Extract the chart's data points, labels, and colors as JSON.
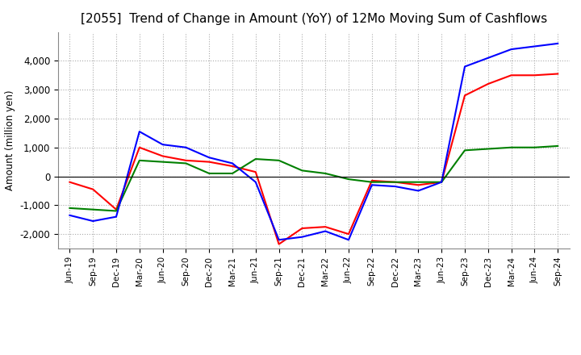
{
  "title": "[2055]  Trend of Change in Amount (YoY) of 12Mo Moving Sum of Cashflows",
  "ylabel": "Amount (million yen)",
  "background_color": "#ffffff",
  "grid_color": "#aaaaaa",
  "x_labels": [
    "Jun-19",
    "Sep-19",
    "Dec-19",
    "Mar-20",
    "Jun-20",
    "Sep-20",
    "Dec-20",
    "Mar-21",
    "Jun-21",
    "Sep-21",
    "Dec-21",
    "Mar-22",
    "Jun-22",
    "Sep-22",
    "Dec-22",
    "Mar-23",
    "Jun-23",
    "Sep-23",
    "Dec-23",
    "Mar-24",
    "Jun-24",
    "Sep-24"
  ],
  "operating": [
    -200,
    -450,
    -1150,
    1000,
    700,
    550,
    500,
    350,
    150,
    -2350,
    -1800,
    -1750,
    -2000,
    -150,
    -200,
    -300,
    -200,
    2800,
    3200,
    3500,
    3500,
    3550
  ],
  "investing": [
    -1100,
    -1150,
    -1200,
    550,
    500,
    450,
    100,
    100,
    600,
    550,
    200,
    100,
    -100,
    -200,
    -200,
    -200,
    -200,
    900,
    950,
    1000,
    1000,
    1050
  ],
  "free": [
    -1350,
    -1550,
    -1400,
    1550,
    1100,
    1000,
    650,
    450,
    -200,
    -2200,
    -2100,
    -1900,
    -2200,
    -300,
    -350,
    -500,
    -200,
    3800,
    4100,
    4400,
    4500,
    4600
  ],
  "op_color": "#ff0000",
  "inv_color": "#008000",
  "free_color": "#0000ff",
  "ylim_min": -2500,
  "ylim_max": 5000,
  "yticks": [
    -2000,
    -1000,
    0,
    1000,
    2000,
    3000,
    4000
  ],
  "title_fontsize": 11
}
